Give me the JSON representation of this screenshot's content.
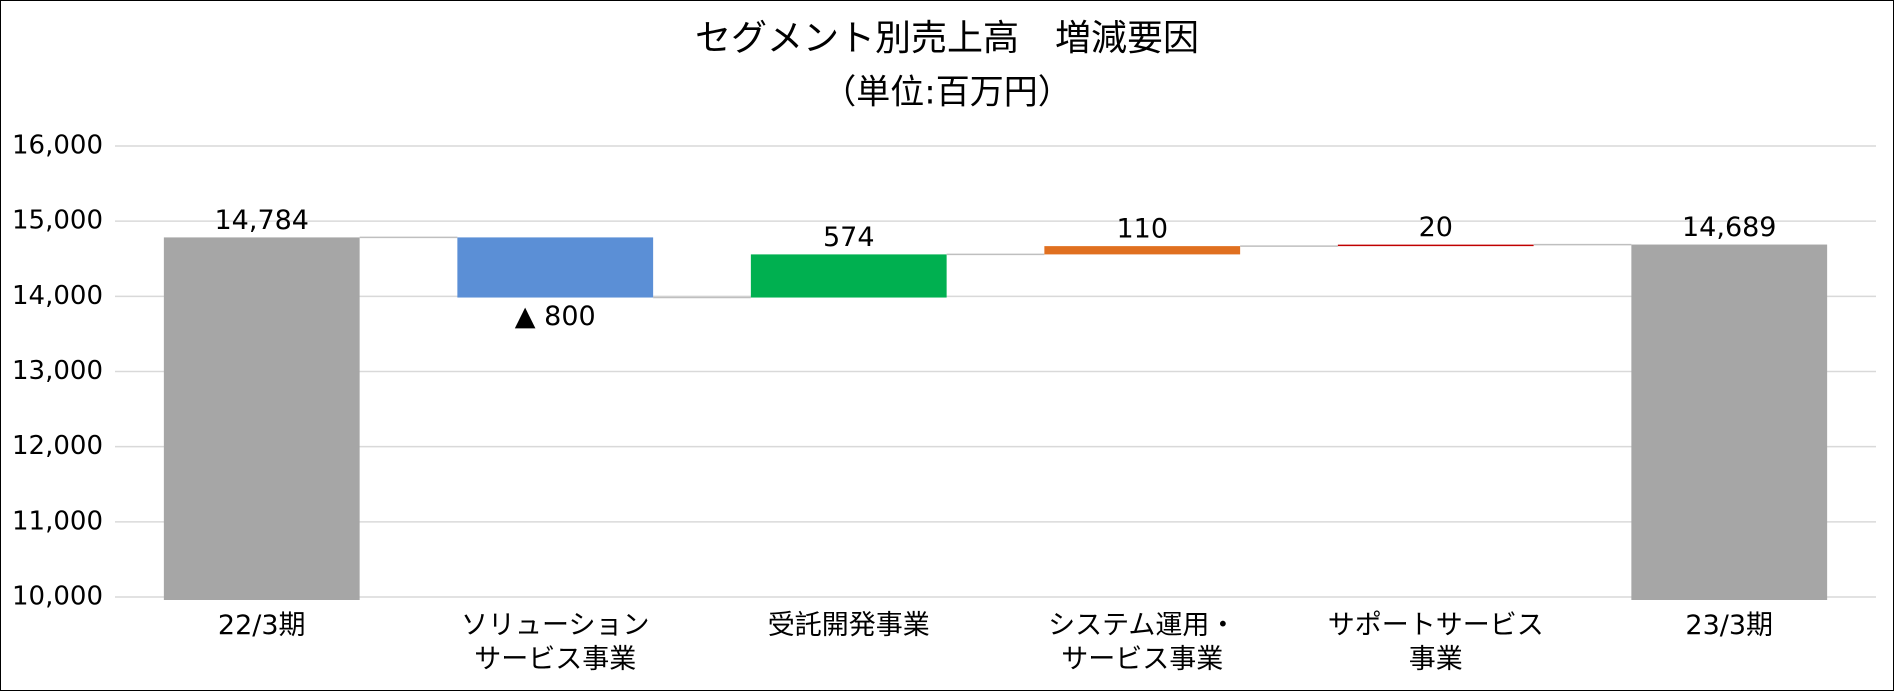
{
  "chart_data": {
    "type": "waterfall",
    "title": "セグメント別売上高　増減要因",
    "subtitle": "（単位:百万円）",
    "categories": [
      "22/3期",
      "ソリューション\nサービス事業",
      "受託開発事業",
      "システム運用・\nサービス事業",
      "サポートサービス\n事業",
      "23/3期"
    ],
    "values": [
      14784,
      -800,
      574,
      110,
      20,
      14689
    ],
    "value_labels": [
      "14,784",
      "▲ 800",
      "574",
      "110",
      "20",
      "14,689"
    ],
    "colors": [
      "#a6a6a6",
      "#5b8fd6",
      "#00b050",
      "#e07020",
      "#c00000",
      "#a6a6a6"
    ],
    "ylim": [
      10000,
      16000
    ],
    "yticks": [
      {
        "value": 10000,
        "label": "10,000"
      },
      {
        "value": 11000,
        "label": "11,000"
      },
      {
        "value": 12000,
        "label": "12,000"
      },
      {
        "value": 13000,
        "label": "13,000"
      },
      {
        "value": 14000,
        "label": "14,000"
      },
      {
        "value": 15000,
        "label": "15,000"
      },
      {
        "value": 16000,
        "label": "16,000"
      }
    ],
    "grid": true
  }
}
